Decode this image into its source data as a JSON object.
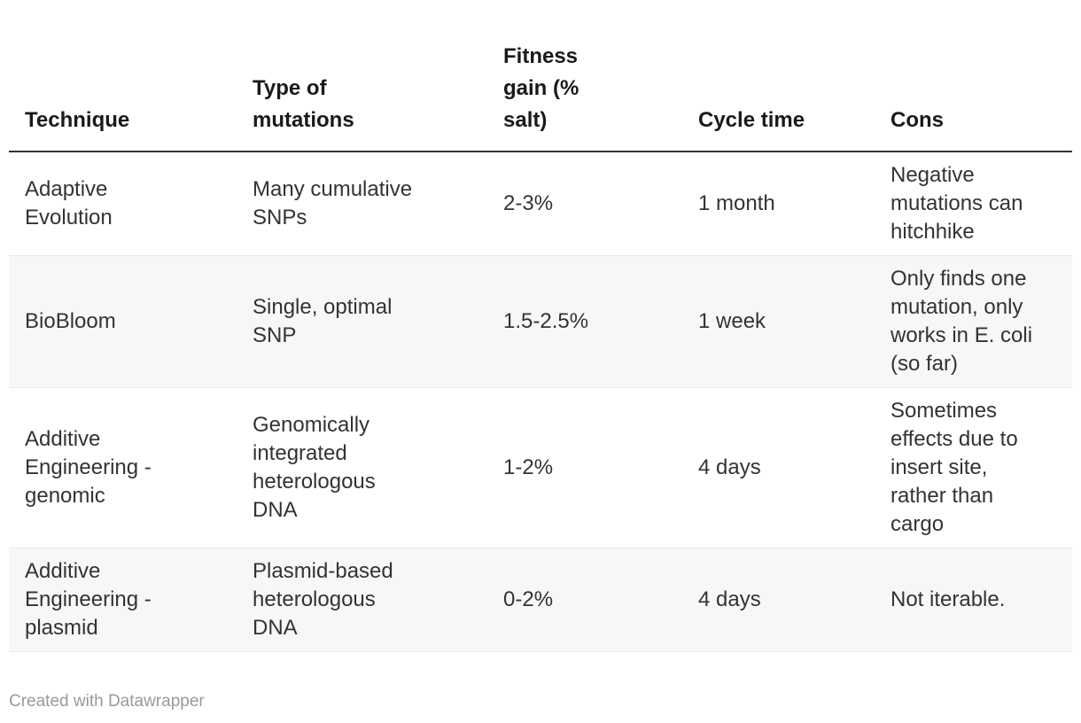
{
  "colors": {
    "page_background": "#ffffff",
    "header_text": "#1a1a1a",
    "body_text": "#333333",
    "stripe_background": "#f7f7f7",
    "row_separator": "#e9e9e9",
    "header_rule": "#333333",
    "footer_text": "#999999"
  },
  "table": {
    "columns": [
      "Technique",
      "Type of mutations",
      "Fitness gain (% salt)",
      "Cycle time",
      "Cons"
    ],
    "rows": [
      [
        "Adaptive Evolution",
        "Many cumulative SNPs",
        "2-3%",
        "1 month",
        "Negative mutations can hitchhike"
      ],
      [
        "BioBloom",
        "Single, optimal SNP",
        "1.5-2.5%",
        "1 week",
        "Only finds one mutation, only works in E. coli (so far)"
      ],
      [
        "Additive Engineering - genomic",
        "Genomically integrated heterologous DNA",
        "1-2%",
        "4 days",
        "Sometimes effects due to insert site, rather than cargo"
      ],
      [
        "Additive Engineering - plasmid",
        "Plasmid-based heterologous DNA",
        "0-2%",
        "4 days",
        "Not iterable."
      ]
    ]
  },
  "footer": {
    "credit": "Created with Datawrapper"
  }
}
